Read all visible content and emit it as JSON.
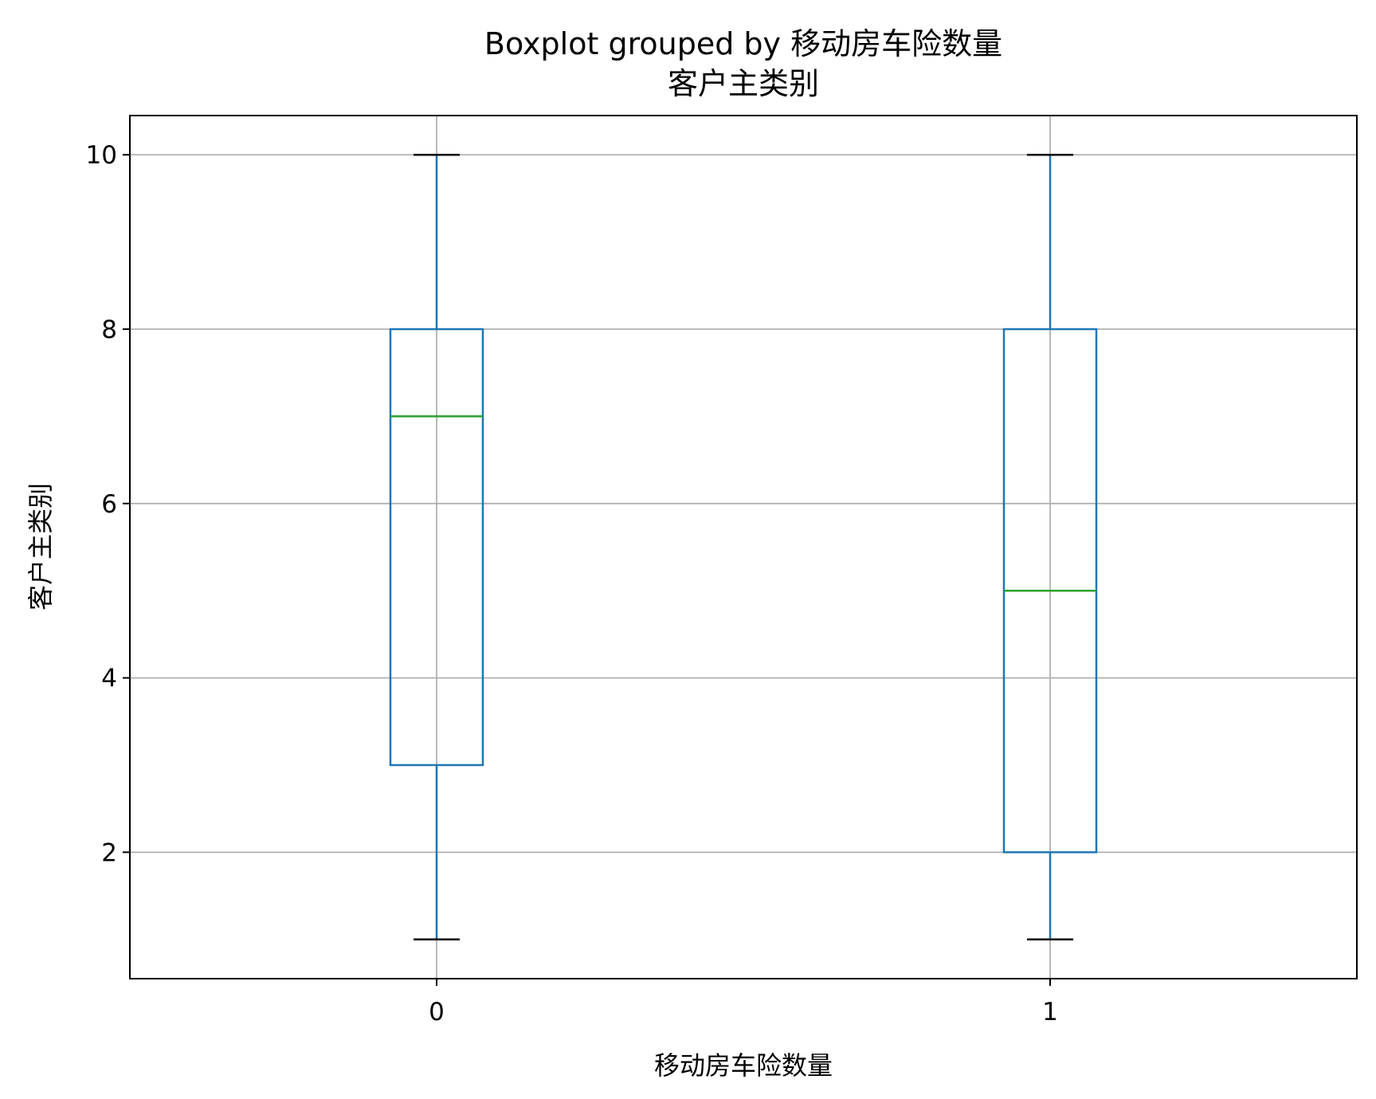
{
  "chart_data": {
    "type": "boxplot",
    "title": "Boxplot grouped by 移动房车险数量",
    "subtitle": "客户主类别",
    "xlabel": "移动房车险数量",
    "ylabel": "客户主类别",
    "categories": [
      "0",
      "1"
    ],
    "boxes": [
      {
        "category": "0",
        "whisker_low": 1,
        "q1": 3,
        "median": 7,
        "q3": 8,
        "whisker_high": 10
      },
      {
        "category": "1",
        "whisker_low": 1,
        "q1": 2,
        "median": 5,
        "q3": 8,
        "whisker_high": 10
      }
    ],
    "yticks": [
      2,
      4,
      6,
      8,
      10
    ],
    "ytick_labels": [
      "2",
      "4",
      "6",
      "8",
      "10"
    ],
    "ylim": [
      0.55,
      10.45
    ],
    "grid": true,
    "colors": {
      "box": "#1f77b4",
      "median": "#2ca02c",
      "cap": "#000000",
      "grid": "#b0b0b0",
      "axes": "#000000"
    }
  }
}
